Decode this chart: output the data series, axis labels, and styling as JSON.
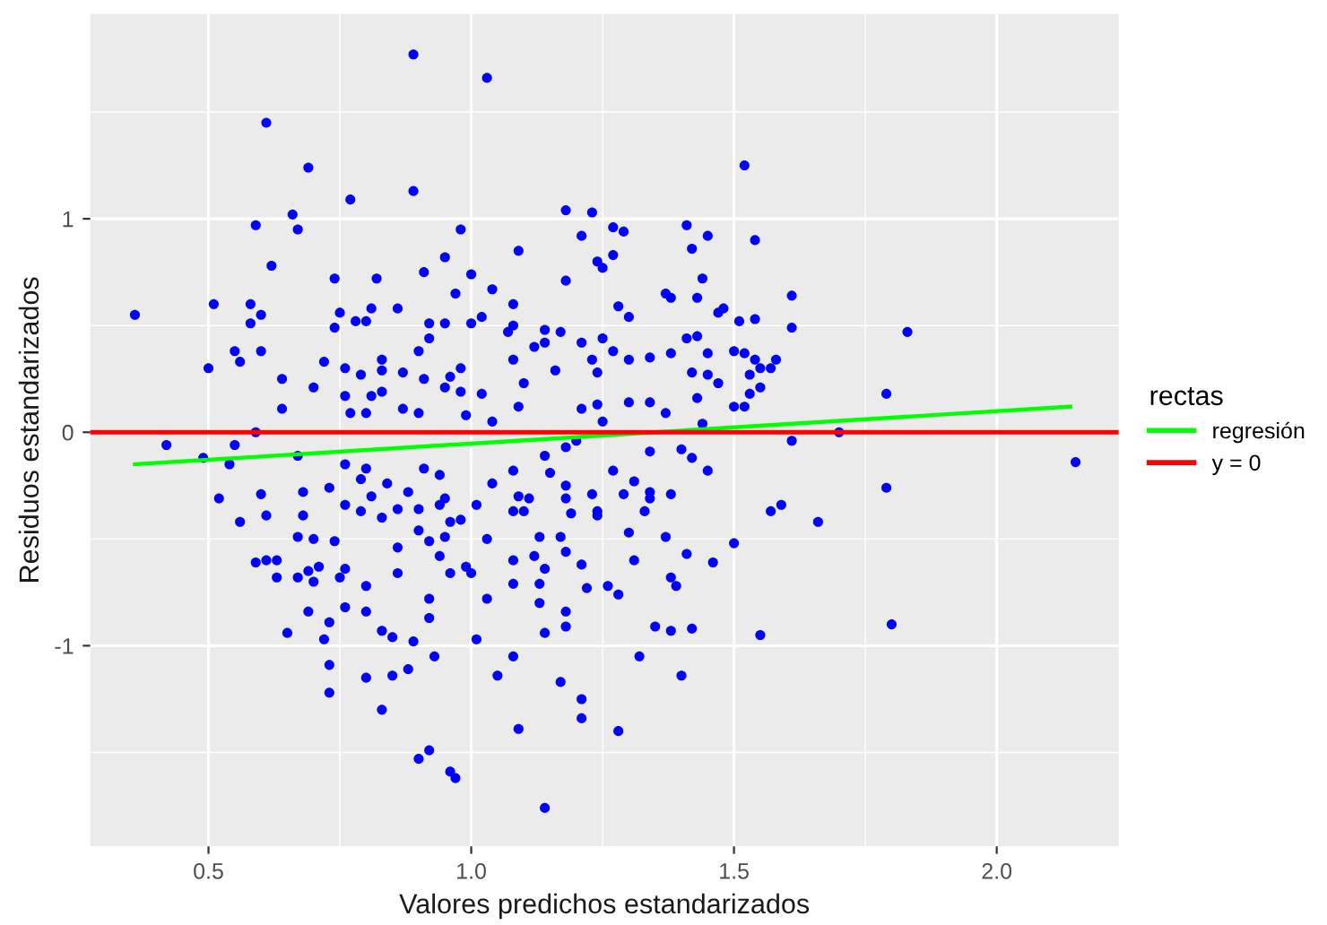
{
  "chart_data": {
    "type": "scatter",
    "xlabel": "Valores predichos estandarizados",
    "ylabel": "Residuos estandarizados",
    "legend_title": "rectas",
    "legend": "right",
    "grid": true,
    "xlim": [
      0.275,
      2.232
    ],
    "ylim": [
      -1.94,
      1.96
    ],
    "xticks": [
      0.5,
      {
        "value": 1,
        "label": "1.0"
      },
      1.5,
      {
        "value": 2,
        "label": "2.0"
      }
    ],
    "yticks": [
      -1,
      0,
      1
    ],
    "ref_lines": [
      {
        "axis": "y",
        "value": 0,
        "label": "y = 0",
        "color": "#ff0000"
      }
    ],
    "series": [
      {
        "marker": "circle",
        "color": "#0000ff",
        "x": [
          0.36,
          0.51,
          0.89,
          1.03,
          0.61,
          0.69,
          1.52,
          0.89,
          0.77,
          0.66,
          0.59,
          0.67,
          0.98,
          1.18,
          1.23,
          1.27,
          1.29,
          1.41,
          1.45,
          1.54,
          1.42,
          1.09,
          1.21,
          1.27,
          0.95,
          0.62,
          1.18,
          1.24,
          1.25,
          1.44,
          0.74,
          0.82,
          1.0,
          0.91,
          1.04,
          0.97,
          1.37,
          1.38,
          1.43,
          1.61,
          1.08,
          0.58,
          0.6,
          0.58,
          0.81,
          0.86,
          0.75,
          0.78,
          0.8,
          0.74,
          0.92,
          0.95,
          1.0,
          1.02,
          1.08,
          1.28,
          1.3,
          1.47,
          1.48,
          1.51,
          1.54,
          1.61,
          1.83,
          1.07,
          1.14,
          1.17,
          0.92,
          0.9,
          1.12,
          1.14,
          1.21,
          1.25,
          1.41,
          1.43,
          0.6,
          0.55,
          0.56,
          0.5,
          0.72,
          0.76,
          0.79,
          0.83,
          0.83,
          0.87,
          0.91,
          0.98,
          0.96,
          0.95,
          0.98,
          1.02,
          1.08,
          1.1,
          1.16,
          1.27,
          1.34,
          1.38,
          1.45,
          1.5,
          1.52,
          1.23,
          1.3,
          1.54,
          1.58,
          1.24,
          1.42,
          1.45,
          1.53,
          1.55,
          1.57,
          1.47,
          1.55,
          1.53,
          1.43,
          0.83,
          0.81,
          0.76,
          0.7,
          0.64,
          0.64,
          0.77,
          0.8,
          0.87,
          0.9,
          0.99,
          1.04,
          1.09,
          1.21,
          1.24,
          1.3,
          1.34,
          1.37,
          1.5,
          1.52,
          1.79,
          1.25,
          1.44,
          0.59,
          1.7,
          1.61,
          0.42,
          0.49,
          0.55,
          0.54,
          0.52,
          0.56,
          0.6,
          0.61,
          0.67,
          0.68,
          0.68,
          0.67,
          0.7,
          0.73,
          0.74,
          0.76,
          0.79,
          0.81,
          0.83,
          0.84,
          0.76,
          0.8,
          0.79,
          0.86,
          0.88,
          0.9,
          0.91,
          0.94,
          0.95,
          0.94,
          0.96,
          0.98,
          0.92,
          0.95,
          0.9,
          0.86,
          1.01,
          1.03,
          1.04,
          1.08,
          1.1,
          1.11,
          1.09,
          1.08,
          1.15,
          1.18,
          1.18,
          1.19,
          1.23,
          1.24,
          1.13,
          1.17,
          0.59,
          0.61,
          0.63,
          0.63,
          0.67,
          0.69,
          0.71,
          0.7,
          0.75,
          0.76,
          0.8,
          0.76,
          0.8,
          0.69,
          0.73,
          0.65,
          0.72,
          0.73,
          0.73,
          0.83,
          0.85,
          0.86,
          0.92,
          0.92,
          0.89,
          0.93,
          0.88,
          0.85,
          0.8,
          0.83,
          0.9,
          0.92,
          0.96,
          0.97,
          0.94,
          0.96,
          0.99,
          1.0,
          1.03,
          1.01,
          1.05,
          1.08,
          1.08,
          1.08,
          1.09,
          1.12,
          1.13,
          1.14,
          1.13,
          1.14,
          1.18,
          1.18,
          1.18,
          1.17,
          1.21,
          1.22,
          1.21,
          1.21,
          1.14,
          1.26,
          1.27,
          1.31,
          1.29,
          1.34,
          1.34,
          1.33,
          1.38,
          1.45,
          1.42,
          1.4,
          1.34,
          1.79,
          2.15,
          1.57,
          1.59,
          1.66,
          1.5,
          1.46,
          1.41,
          1.37,
          1.3,
          1.31,
          1.38,
          1.39,
          1.28,
          1.35,
          1.38,
          1.42,
          1.55,
          1.8,
          1.32,
          1.4,
          1.28,
          1.24,
          1.14,
          1.18,
          1.2
        ],
        "values": [
          0.55,
          0.6,
          1.77,
          1.66,
          1.45,
          1.24,
          1.25,
          1.13,
          1.09,
          1.02,
          0.97,
          0.95,
          0.95,
          1.04,
          1.03,
          0.96,
          0.94,
          0.97,
          0.92,
          0.9,
          0.86,
          0.85,
          0.92,
          0.83,
          0.82,
          0.78,
          0.71,
          0.8,
          0.77,
          0.72,
          0.72,
          0.72,
          0.74,
          0.75,
          0.67,
          0.65,
          0.65,
          0.63,
          0.63,
          0.64,
          0.6,
          0.6,
          0.55,
          0.51,
          0.58,
          0.58,
          0.56,
          0.52,
          0.52,
          0.49,
          0.51,
          0.51,
          0.51,
          0.54,
          0.5,
          0.59,
          0.54,
          0.56,
          0.58,
          0.52,
          0.53,
          0.49,
          0.47,
          0.47,
          0.48,
          0.47,
          0.44,
          0.38,
          0.4,
          0.42,
          0.42,
          0.44,
          0.44,
          0.45,
          0.38,
          0.38,
          0.33,
          0.3,
          0.33,
          0.3,
          0.27,
          0.34,
          0.29,
          0.28,
          0.25,
          0.3,
          0.26,
          0.21,
          0.19,
          0.18,
          0.34,
          0.23,
          0.29,
          0.38,
          0.35,
          0.37,
          0.37,
          0.38,
          0.37,
          0.34,
          0.34,
          0.34,
          0.34,
          0.28,
          0.28,
          0.27,
          0.27,
          0.3,
          0.3,
          0.23,
          0.21,
          0.18,
          0.16,
          0.19,
          0.17,
          0.17,
          0.21,
          0.25,
          0.11,
          0.09,
          0.09,
          0.11,
          0.09,
          0.08,
          0.05,
          0.12,
          0.11,
          0.13,
          0.14,
          0.14,
          0.09,
          0.12,
          0.12,
          0.18,
          0.05,
          0.04,
          0.0,
          0.0,
          -0.04,
          -0.06,
          -0.12,
          -0.06,
          -0.15,
          -0.31,
          -0.42,
          -0.29,
          -0.39,
          -0.11,
          -0.28,
          -0.39,
          -0.49,
          -0.5,
          -0.26,
          -0.51,
          -0.34,
          -0.37,
          -0.3,
          -0.4,
          -0.24,
          -0.15,
          -0.17,
          -0.22,
          -0.36,
          -0.28,
          -0.36,
          -0.17,
          -0.2,
          -0.31,
          -0.34,
          -0.42,
          -0.41,
          -0.51,
          -0.49,
          -0.46,
          -0.54,
          -0.34,
          -0.5,
          -0.24,
          -0.37,
          -0.37,
          -0.31,
          -0.3,
          -0.18,
          -0.19,
          -0.25,
          -0.31,
          -0.38,
          -0.29,
          -0.37,
          -0.49,
          -0.49,
          -0.61,
          -0.6,
          -0.6,
          -0.68,
          -0.68,
          -0.65,
          -0.63,
          -0.7,
          -0.68,
          -0.64,
          -0.72,
          -0.82,
          -0.84,
          -0.84,
          -0.89,
          -0.94,
          -0.97,
          -1.09,
          -1.22,
          -0.93,
          -0.96,
          -0.66,
          -0.78,
          -0.87,
          -0.98,
          -1.05,
          -1.11,
          -1.14,
          -1.15,
          -1.3,
          -1.53,
          -1.49,
          -1.59,
          -1.62,
          -0.58,
          -0.66,
          -0.63,
          -0.66,
          -0.78,
          -0.97,
          -1.14,
          -0.6,
          -0.71,
          -1.05,
          -1.39,
          -0.58,
          -0.71,
          -0.64,
          -0.8,
          -0.94,
          -0.56,
          -0.84,
          -0.91,
          -1.17,
          -0.62,
          -0.73,
          -1.25,
          -1.34,
          -1.76,
          -0.72,
          -0.18,
          -0.23,
          -0.29,
          -0.28,
          -0.31,
          -0.37,
          -0.29,
          -0.18,
          -0.12,
          -0.08,
          -0.09,
          -0.26,
          -0.14,
          -0.37,
          -0.34,
          -0.42,
          -0.52,
          -0.61,
          -0.57,
          -0.49,
          -0.47,
          -0.6,
          -0.68,
          -0.72,
          -0.76,
          -0.91,
          -0.93,
          -0.92,
          -0.95,
          -0.9,
          -1.05,
          -1.14,
          -1.4,
          -0.39,
          -0.11,
          -0.07,
          -0.04
        ]
      },
      {
        "type": "line",
        "name": "regresión",
        "color": "#00ff00",
        "x": [
          0.36,
          2.14
        ],
        "values": [
          -0.15,
          0.12
        ]
      }
    ]
  }
}
